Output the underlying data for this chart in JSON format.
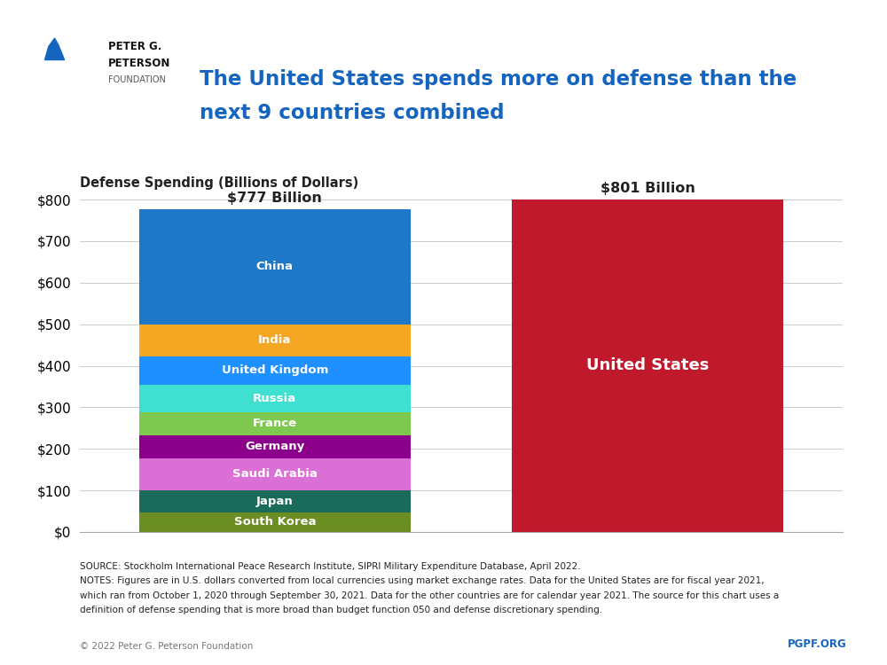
{
  "title_line1": "The United States spends more on defense than the",
  "title_line2": "next 9 countries combined",
  "axis_title": "Defense Spending (Billions of Dollars)",
  "ylim": [
    0,
    800
  ],
  "yticks": [
    0,
    100,
    200,
    300,
    400,
    500,
    600,
    700,
    800
  ],
  "ytick_labels": [
    "$0",
    "$100",
    "$200",
    "$300",
    "$400",
    "$500",
    "$600",
    "$700",
    "$800"
  ],
  "bar1_label": "$777 Billion",
  "bar2_label": "$801 Billion",
  "us_value": 801,
  "us_color": "#C0192C",
  "us_label": "United States",
  "countries": [
    "South Korea",
    "Japan",
    "Saudi Arabia",
    "Germany",
    "France",
    "Russia",
    "United Kingdom",
    "India",
    "China"
  ],
  "values": [
    47,
    54,
    76,
    56,
    56,
    66,
    68,
    77,
    277
  ],
  "colors": [
    "#6B8E23",
    "#1A6B5A",
    "#DA70D6",
    "#8B008B",
    "#7EC850",
    "#40E0D0",
    "#1E90FF",
    "#F5A623",
    "#1E78C8"
  ],
  "source_text": "SOURCE: Stockholm International Peace Research Institute, SIPRI Military Expenditure Database, April 2022.",
  "notes_line1": "NOTES: Figures are in U.S. dollars converted from local currencies using market exchange rates. Data for the United States are for fiscal year 2021,",
  "notes_line2": "which ran from October 1, 2020 through September 30, 2021. Data for the other countries are for calendar year 2021. The source for this chart uses a",
  "notes_line3": "definition of defense spending that is more broad than budget function 050 and defense discretionary spending.",
  "copyright_text": "© 2022 Peter G. Peterson Foundation",
  "pgpf_text": "PGPF.ORG",
  "title_color": "#1565C0",
  "axis_title_color": "#222222",
  "pgpf_color": "#1565C0",
  "logo_bg_color": "#1565C0",
  "background_color": "#FFFFFF"
}
